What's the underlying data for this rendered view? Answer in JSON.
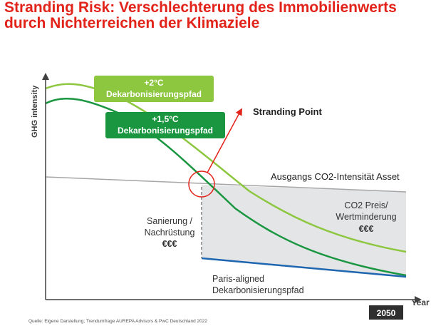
{
  "title": {
    "line1": "Stranding Risk: Verschlechterung des Immobilienwerts",
    "line2": "durch Nichterreichen der Klimaziele"
  },
  "axes": {
    "y_label": "GHG intensity",
    "x_label": "Year",
    "x_end_tick": "2050"
  },
  "curves": {
    "plus2": {
      "line1": "+2°C",
      "line2": "Dekarbonisierungspfad",
      "color": "#8dc63f"
    },
    "plus15": {
      "line1": "+1,5°C",
      "line2": "Dekarbonisierungspfad",
      "color": "#1a9641"
    },
    "baseline": {
      "label": "Ausgangs CO2-Intensität Asset",
      "color": "#a6a6a6"
    },
    "paris": {
      "line1": "Paris-aligned",
      "line2": "Dekarbonisierungspfad",
      "color": "#1f66b0"
    }
  },
  "annotations": {
    "stranding_point": "Stranding Point",
    "stranding_color": "#e2231a",
    "co2": {
      "line1": "CO2 Preis/",
      "line2": "Wertminderung",
      "line3": "€€€"
    },
    "retrofit": {
      "line1": "Sanierung /",
      "line2": "Nachrüstung",
      "line3": "€€€"
    }
  },
  "source": "Quelle: Eigene Darstellung; Trendumfrage AUREPA Advisors & PwC Deutschland 2022",
  "colors": {
    "title": "#e2231a",
    "axis": "#404040",
    "gap_fill": "#e4e5e7",
    "year_box": "#2f2f2f"
  }
}
